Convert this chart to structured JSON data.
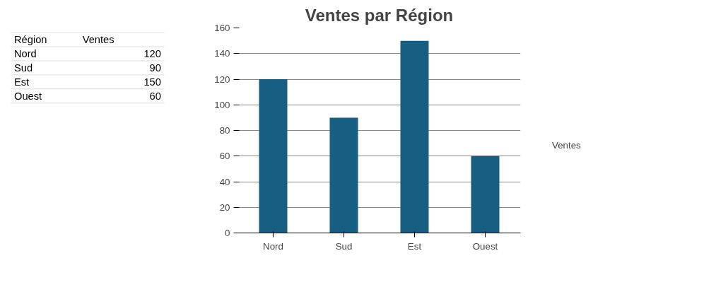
{
  "chart_data": [
    {
      "type": "other",
      "annotations": [
        "Région",
        "Ventes",
        "Nord",
        "120",
        "Sud",
        "90",
        "Est",
        "150",
        "Ouest",
        "60"
      ]
    },
    {
      "type": "bar",
      "title": "Ventes par Région",
      "categories": [
        "Nord",
        "Sud",
        "Est",
        "Ouest"
      ],
      "series": [
        {
          "name": "Ventes",
          "color": "#175f82",
          "values": [
            120,
            90,
            150,
            60
          ]
        }
      ],
      "ylim": [
        0,
        160
      ],
      "yticks": [
        0,
        20,
        40,
        60,
        80,
        100,
        120,
        140,
        160
      ],
      "grid": "y",
      "legend": "right"
    }
  ]
}
